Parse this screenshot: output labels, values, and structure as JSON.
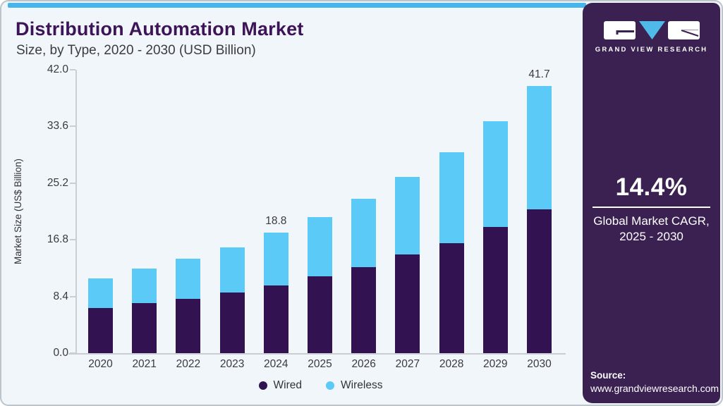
{
  "title": "Distribution Automation Market",
  "subtitle": "Size, by Type, 2020 - 2030 (USD Billion)",
  "brand": {
    "logo_text": "GRAND VIEW RESEARCH",
    "cagr_value": "14.4%",
    "cagr_caption_line1": "Global Market CAGR,",
    "cagr_caption_line2": "2025 - 2030",
    "source_label": "Source:",
    "source_url": "www.grandviewresearch.com"
  },
  "colors": {
    "accent_blue": "#47b5e9",
    "wired": "#321250",
    "wireless": "#5ccaf6",
    "sidebar_bg": "#3b2152",
    "title_text": "#3d1458",
    "panel_bg": "#f0f6fa",
    "axis_line": "#c9ced3",
    "text_dark": "#3a3a41"
  },
  "chart_data": {
    "type": "bar",
    "stacked": true,
    "title": "Distribution Automation Market Size, by Type, 2020 - 2030 (USD Billion)",
    "categories": [
      "2020",
      "2021",
      "2022",
      "2023",
      "2024",
      "2025",
      "2026",
      "2027",
      "2028",
      "2029",
      "2030"
    ],
    "series": [
      {
        "name": "Wired",
        "color": "#321250",
        "values": [
          7.0,
          7.8,
          8.5,
          9.5,
          10.6,
          12.0,
          13.4,
          15.4,
          17.2,
          19.7,
          22.4
        ]
      },
      {
        "name": "Wireless",
        "color": "#5ccaf6",
        "values": [
          4.7,
          5.4,
          6.2,
          7.0,
          8.2,
          9.2,
          10.7,
          12.1,
          14.2,
          16.5,
          19.3
        ]
      }
    ],
    "totals": [
      11.7,
      13.2,
      14.7,
      16.5,
      18.8,
      21.2,
      24.1,
      27.5,
      31.4,
      36.2,
      41.7
    ],
    "bar_labels": {
      "2024": "18.8",
      "2030": "41.7"
    },
    "ylabel": "Market Size (US$ Billion)",
    "xlabel": "",
    "yticks": [
      0.0,
      8.4,
      16.8,
      25.2,
      33.6,
      42.0
    ],
    "ylim": [
      0,
      42
    ],
    "grid": false,
    "legend": {
      "position": "bottom",
      "entries": [
        "Wired",
        "Wireless"
      ]
    }
  }
}
